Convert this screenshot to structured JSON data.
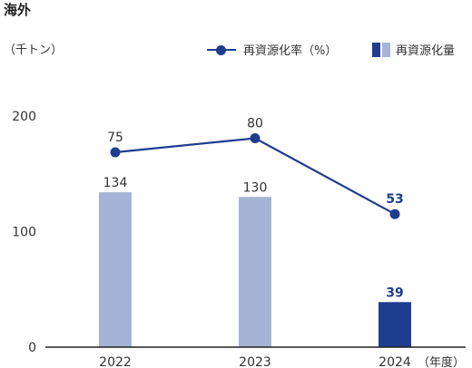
{
  "title": "海外",
  "unit_label": "（千トン）",
  "legend": {
    "line_label": "再資源化率（%）",
    "bar_label": "再資源化量"
  },
  "colors": {
    "line": "#1f3d8f",
    "bar_past": "#a6b3d6",
    "bar_current": "#1f3d8f",
    "axis": "#222222"
  },
  "chart_data": {
    "type": "bar",
    "categories": [
      "2022",
      "2023",
      "2024"
    ],
    "x_unit_label": "（年度）",
    "y_ticks": [
      0,
      100,
      200
    ],
    "ylim": [
      0,
      200
    ],
    "grid": false,
    "legend_position": "top-right",
    "series": [
      {
        "name": "再資源化量",
        "type": "bar",
        "values": [
          134,
          130,
          39
        ]
      },
      {
        "name": "再資源化率（%）",
        "type": "line",
        "values": [
          75,
          80,
          53
        ]
      }
    ],
    "highlight_index": 2
  }
}
